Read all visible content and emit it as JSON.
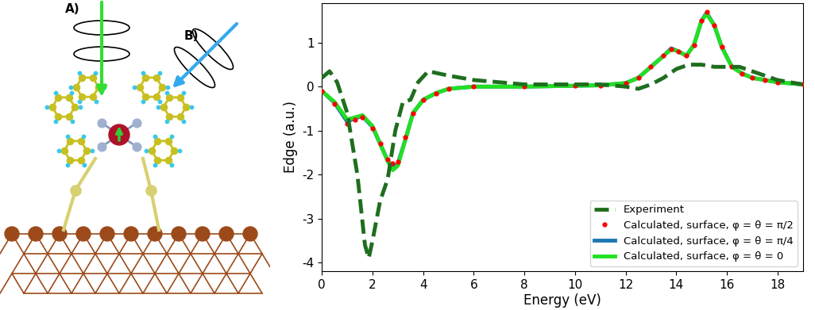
{
  "diagram": {
    "labels": [
      "A)",
      "B)"
    ]
  },
  "chart_data": {
    "type": "line",
    "xlabel": "Energy (eV)",
    "ylabel": "Edge (a.u.)",
    "xlim": [
      0,
      19
    ],
    "ylim": [
      -4.2,
      1.9
    ],
    "xticks": [
      0,
      2,
      4,
      6,
      8,
      10,
      12,
      14,
      16,
      18
    ],
    "yticks": [
      -4,
      -3,
      -2,
      -1,
      0,
      1
    ],
    "grid": false,
    "legend": "lower right",
    "series": [
      {
        "name": "Experiment",
        "color": "#1e6e1e",
        "line_style": "dashed",
        "marker": "none",
        "x": [
          0,
          0.3,
          0.6,
          1.0,
          1.4,
          1.7,
          1.85,
          2.0,
          2.3,
          2.6,
          2.9,
          3.2,
          3.5,
          3.8,
          4.2,
          4.6,
          5.0,
          6,
          7,
          8,
          9,
          10,
          11,
          12,
          12.5,
          13,
          13.5,
          14,
          14.5,
          15,
          15.5,
          16,
          16.5,
          17,
          17.5,
          18,
          19
        ],
        "values": [
          0.2,
          0.35,
          0.1,
          -0.6,
          -2.0,
          -3.6,
          -3.9,
          -3.5,
          -2.6,
          -2.1,
          -1.0,
          -0.35,
          -0.3,
          0.1,
          0.35,
          0.3,
          0.25,
          0.15,
          0.1,
          0.05,
          0.05,
          0.05,
          0.05,
          0.0,
          -0.05,
          0.05,
          0.2,
          0.4,
          0.5,
          0.5,
          0.45,
          0.45,
          0.45,
          0.35,
          0.25,
          0.15,
          0.05
        ]
      },
      {
        "name": "Calculated, surface, φ = θ = π/2",
        "color": "#ff0000",
        "line_style": "none",
        "marker": "dot",
        "x": [
          0,
          0.5,
          1.0,
          1.3,
          1.6,
          2.0,
          2.3,
          2.6,
          2.8,
          3.0,
          3.3,
          3.6,
          4.0,
          4.5,
          5,
          6,
          8,
          10,
          11,
          12,
          12.5,
          13,
          13.5,
          13.8,
          14.1,
          14.4,
          14.7,
          15.0,
          15.2,
          15.5,
          15.8,
          16.2,
          16.6,
          17,
          17.5,
          18,
          19
        ],
        "values": [
          -0.1,
          -0.4,
          -0.85,
          -0.75,
          -0.7,
          -0.95,
          -1.3,
          -1.65,
          -1.75,
          -1.7,
          -1.15,
          -0.6,
          -0.3,
          -0.15,
          -0.05,
          0.0,
          0.0,
          0.02,
          0.03,
          0.08,
          0.2,
          0.45,
          0.7,
          0.85,
          0.8,
          0.7,
          0.95,
          1.5,
          1.7,
          1.4,
          0.9,
          0.45,
          0.3,
          0.2,
          0.15,
          0.1,
          0.05
        ]
      },
      {
        "name": "Calculated, surface, φ = θ = π/4",
        "color": "#1f77b4",
        "line_style": "solid",
        "marker": "none",
        "x": [
          0,
          0.5,
          1.0,
          1.3,
          1.6,
          2.0,
          2.3,
          2.6,
          2.8,
          3.0,
          3.3,
          3.6,
          4.0,
          4.5,
          5,
          6,
          8,
          10,
          11,
          12,
          12.5,
          13,
          13.5,
          13.8,
          14.1,
          14.4,
          14.7,
          15.0,
          15.2,
          15.5,
          15.8,
          16.2,
          16.6,
          17,
          17.5,
          18,
          19
        ],
        "values": [
          -0.1,
          -0.37,
          -0.8,
          -0.72,
          -0.67,
          -0.92,
          -1.3,
          -1.68,
          -1.85,
          -1.75,
          -1.2,
          -0.6,
          -0.3,
          -0.15,
          -0.05,
          0.0,
          0.0,
          0.02,
          0.03,
          0.08,
          0.2,
          0.45,
          0.7,
          0.87,
          0.8,
          0.7,
          0.95,
          1.5,
          1.68,
          1.4,
          0.9,
          0.45,
          0.3,
          0.2,
          0.15,
          0.1,
          0.05
        ]
      },
      {
        "name": "Calculated, surface, φ = θ = 0",
        "color": "#22e022",
        "line_style": "solid",
        "marker": "none",
        "x": [
          0,
          0.5,
          1.0,
          1.3,
          1.6,
          2.0,
          2.3,
          2.6,
          2.8,
          3.0,
          3.3,
          3.6,
          4.0,
          4.5,
          5,
          6,
          8,
          10,
          11,
          12,
          12.5,
          13,
          13.5,
          13.8,
          14.1,
          14.4,
          14.7,
          15.0,
          15.2,
          15.5,
          15.8,
          16.2,
          16.6,
          17,
          17.5,
          18,
          19
        ],
        "values": [
          -0.1,
          -0.35,
          -0.75,
          -0.7,
          -0.65,
          -0.9,
          -1.3,
          -1.7,
          -1.9,
          -1.8,
          -1.2,
          -0.6,
          -0.3,
          -0.15,
          -0.05,
          0.0,
          0.0,
          0.02,
          0.03,
          0.08,
          0.2,
          0.45,
          0.7,
          0.85,
          0.8,
          0.7,
          0.95,
          1.5,
          1.65,
          1.4,
          0.9,
          0.45,
          0.3,
          0.2,
          0.15,
          0.1,
          0.05
        ]
      }
    ]
  }
}
